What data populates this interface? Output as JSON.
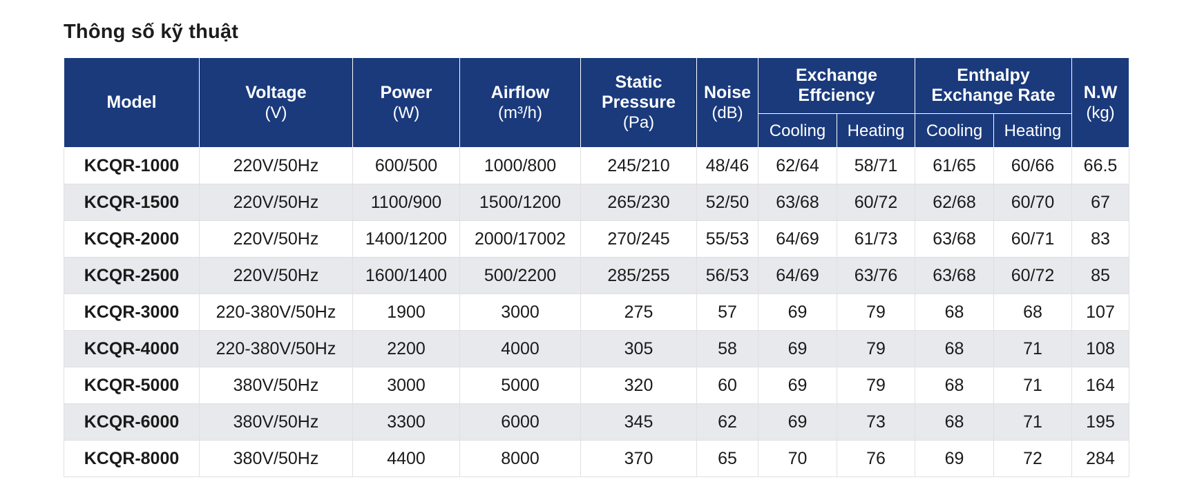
{
  "title": "Thông số kỹ thuật",
  "headers": {
    "model": "Model",
    "voltage": {
      "label": "Voltage",
      "unit": "(V)"
    },
    "power": {
      "label": "Power",
      "unit": "(W)"
    },
    "airflow": {
      "label": "Airflow",
      "unit": "(m³/h)"
    },
    "static_pressure": {
      "label_line1": "Static",
      "label_line2": "Pressure",
      "unit": "(Pa)"
    },
    "noise": {
      "label": "Noise",
      "unit": "(dB)"
    },
    "exchange_efficiency": {
      "label_line1": "Exchange",
      "label_line2": "Effciency",
      "cooling": "Cooling",
      "heating": "Heating"
    },
    "enthalpy_exchange_rate": {
      "label_line1": "Enthalpy",
      "label_line2": "Exchange Rate",
      "cooling": "Cooling",
      "heating": "Heating"
    },
    "nw": {
      "label": "N.W",
      "unit": "(kg)"
    }
  },
  "rows": [
    [
      "KCQR-1000",
      "220V/50Hz",
      "600/500",
      "1000/800",
      "245/210",
      "48/46",
      "62/64",
      "58/71",
      "61/65",
      "60/66",
      "66.5"
    ],
    [
      "KCQR-1500",
      "220V/50Hz",
      "1100/900",
      "1500/1200",
      "265/230",
      "52/50",
      "63/68",
      "60/72",
      "62/68",
      "60/70",
      "67"
    ],
    [
      "KCQR-2000",
      "220V/50Hz",
      "1400/1200",
      "2000/17002",
      "270/245",
      "55/53",
      "64/69",
      "61/73",
      "63/68",
      "60/71",
      "83"
    ],
    [
      "KCQR-2500",
      "220V/50Hz",
      "1600/1400",
      "500/2200",
      "285/255",
      "56/53",
      "64/69",
      "63/76",
      "63/68",
      "60/72",
      "85"
    ],
    [
      "KCQR-3000",
      "220-380V/50Hz",
      "1900",
      "3000",
      "275",
      "57",
      "69",
      "79",
      "68",
      "68",
      "107"
    ],
    [
      "KCQR-4000",
      "220-380V/50Hz",
      "2200",
      "4000",
      "305",
      "58",
      "69",
      "79",
      "68",
      "71",
      "108"
    ],
    [
      "KCQR-5000",
      "380V/50Hz",
      "3000",
      "5000",
      "320",
      "60",
      "69",
      "79",
      "68",
      "71",
      "164"
    ],
    [
      "KCQR-6000",
      "380V/50Hz",
      "3300",
      "6000",
      "345",
      "62",
      "69",
      "73",
      "68",
      "71",
      "195"
    ],
    [
      "KCQR-8000",
      "380V/50Hz",
      "4400",
      "8000",
      "370",
      "65",
      "70",
      "76",
      "69",
      "72",
      "284"
    ]
  ],
  "colors": {
    "header_bg": "#1a3a7c",
    "header_text": "#ffffff",
    "stripe_bg": "#e8e9ec"
  }
}
